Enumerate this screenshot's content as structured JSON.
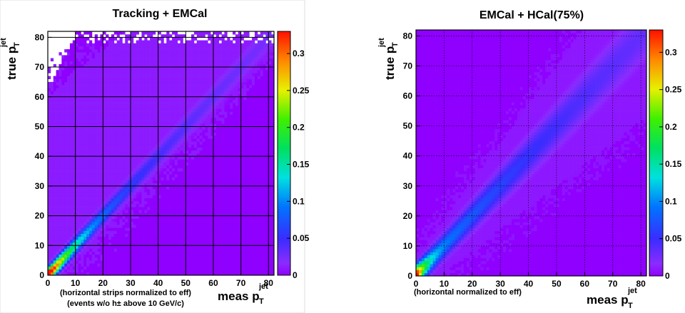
{
  "chart_data": [
    {
      "type": "heatmap",
      "title": "Tracking + EMCal",
      "xlabel": {
        "main": "meas p",
        "sub": "T",
        "sup": "jet"
      },
      "ylabel": {
        "main": "true p",
        "sub": "T",
        "sup": "jet"
      },
      "xlim": [
        0,
        82
      ],
      "ylim": [
        0,
        82
      ],
      "x_ticks": [
        0,
        10,
        20,
        30,
        40,
        50,
        60,
        70,
        80
      ],
      "y_ticks": [
        0,
        10,
        20,
        30,
        40,
        50,
        60,
        70,
        80
      ],
      "colorbar": {
        "min": 0,
        "max": 0.33,
        "ticks": [
          "0",
          "0.05",
          "0.1",
          "0.15",
          "0.2",
          "0.25",
          "0.3"
        ]
      },
      "grid": true,
      "notes": [
        "(horizontal strips normalized to eff)",
        "(events w/o h± above 10 GeV/c)"
      ],
      "description_of_content": "Response matrix concentrated along the diagonal true = meas; diagonal peak ~0.3 at low pT falling to ~0.02 near 80; broad violet background (~0.01) above the diagonal"
    },
    {
      "type": "heatmap",
      "title": "EMCal + HCal(75%)",
      "xlabel": {
        "main": "meas p",
        "sub": "T",
        "sup": "jet"
      },
      "ylabel": {
        "main": "true p",
        "sub": "T",
        "sup": "jet"
      },
      "xlim": [
        0,
        82
      ],
      "ylim": [
        0,
        82
      ],
      "x_ticks": [
        0,
        10,
        20,
        30,
        40,
        50,
        60,
        70,
        80
      ],
      "y_ticks": [
        0,
        10,
        20,
        30,
        40,
        50,
        60,
        70,
        80
      ],
      "colorbar": {
        "min": 0,
        "max": 0.33,
        "ticks": [
          "0",
          "0.05",
          "0.1",
          "0.15",
          "0.2",
          "0.25",
          "0.3"
        ]
      },
      "grid": true,
      "notes": [
        "(horizontal normalized to eff)"
      ],
      "description_of_content": "Broad diagonal band true = meas with peak ~0.33 near origin, ~0.10 around 20 and ~0.06 near 80; violet halo about ±15-25 GeV off the diagonal"
    }
  ]
}
